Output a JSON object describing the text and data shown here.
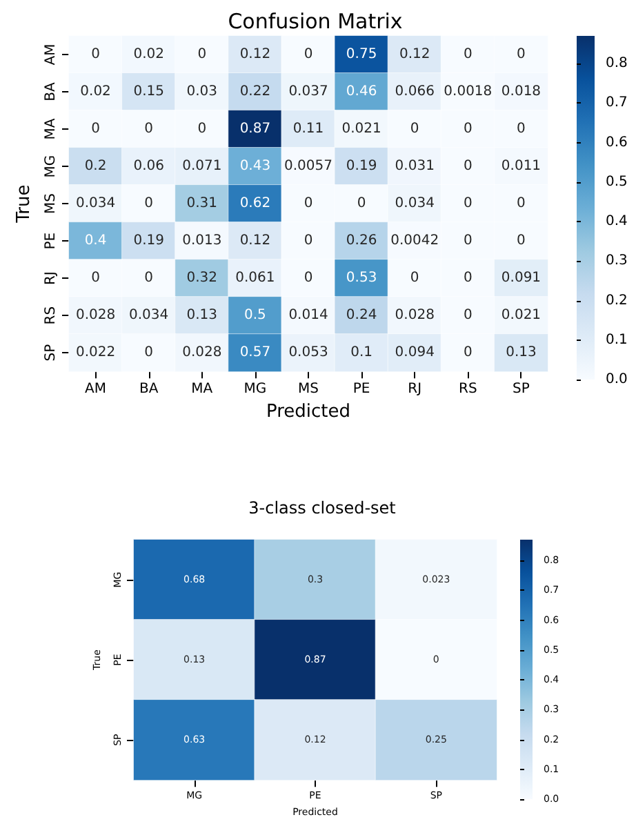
{
  "chart_data": [
    {
      "type": "heatmap",
      "title": "Confusion Matrix",
      "xlabel": "Predicted",
      "ylabel": "True",
      "categories": [
        "AM",
        "BA",
        "MA",
        "MG",
        "MS",
        "PE",
        "RJ",
        "RS",
        "SP"
      ],
      "y_categories": [
        "AM",
        "BA",
        "MA",
        "MG",
        "MS",
        "PE",
        "RJ",
        "RS",
        "SP"
      ],
      "cells": [
        [
          0,
          0.02,
          0,
          0.12,
          0,
          0.75,
          0.12,
          0,
          0
        ],
        [
          0.02,
          0.15,
          0.03,
          0.22,
          0.037,
          0.46,
          0.066,
          0.0018,
          0.018
        ],
        [
          0,
          0,
          0,
          0.87,
          0.11,
          0.021,
          0,
          0,
          0
        ],
        [
          0.2,
          0.06,
          0.071,
          0.43,
          0.0057,
          0.19,
          0.031,
          0,
          0.011
        ],
        [
          0.034,
          0,
          0.31,
          0.62,
          0,
          0,
          0.034,
          0,
          0
        ],
        [
          0.4,
          0.19,
          0.013,
          0.12,
          0,
          0.26,
          0.0042,
          0,
          0
        ],
        [
          0,
          0,
          0.32,
          0.061,
          0,
          0.53,
          0,
          0,
          0.091
        ],
        [
          0.028,
          0.034,
          0.13,
          0.5,
          0.014,
          0.24,
          0.028,
          0,
          0.021
        ],
        [
          0.022,
          0,
          0.028,
          0.57,
          0.053,
          0.1,
          0.094,
          0,
          0.13
        ]
      ],
      "data_labels": true,
      "clim": [
        0,
        0.87
      ],
      "cticks": [
        {
          "value": 0,
          "label": "0.0"
        },
        0.1,
        0.2,
        0.3,
        0.4,
        0.5,
        0.6,
        0.7,
        0.8
      ]
    },
    {
      "type": "heatmap",
      "title": "3-class closed-set",
      "xlabel": "Predicted",
      "ylabel": "True",
      "categories": [
        "MG",
        "PE",
        "SP"
      ],
      "y_categories": [
        "MG",
        "PE",
        "SP"
      ],
      "cells": [
        [
          0.68,
          0.3,
          0.023
        ],
        [
          0.13,
          0.87,
          0
        ],
        [
          0.63,
          0.12,
          0.25
        ]
      ],
      "data_labels": true,
      "clim": [
        0,
        0.87
      ],
      "cticks": [
        {
          "value": 0,
          "label": "0.0"
        },
        0.1,
        0.2,
        0.3,
        0.4,
        0.5,
        0.6,
        0.7,
        0.8
      ]
    }
  ]
}
